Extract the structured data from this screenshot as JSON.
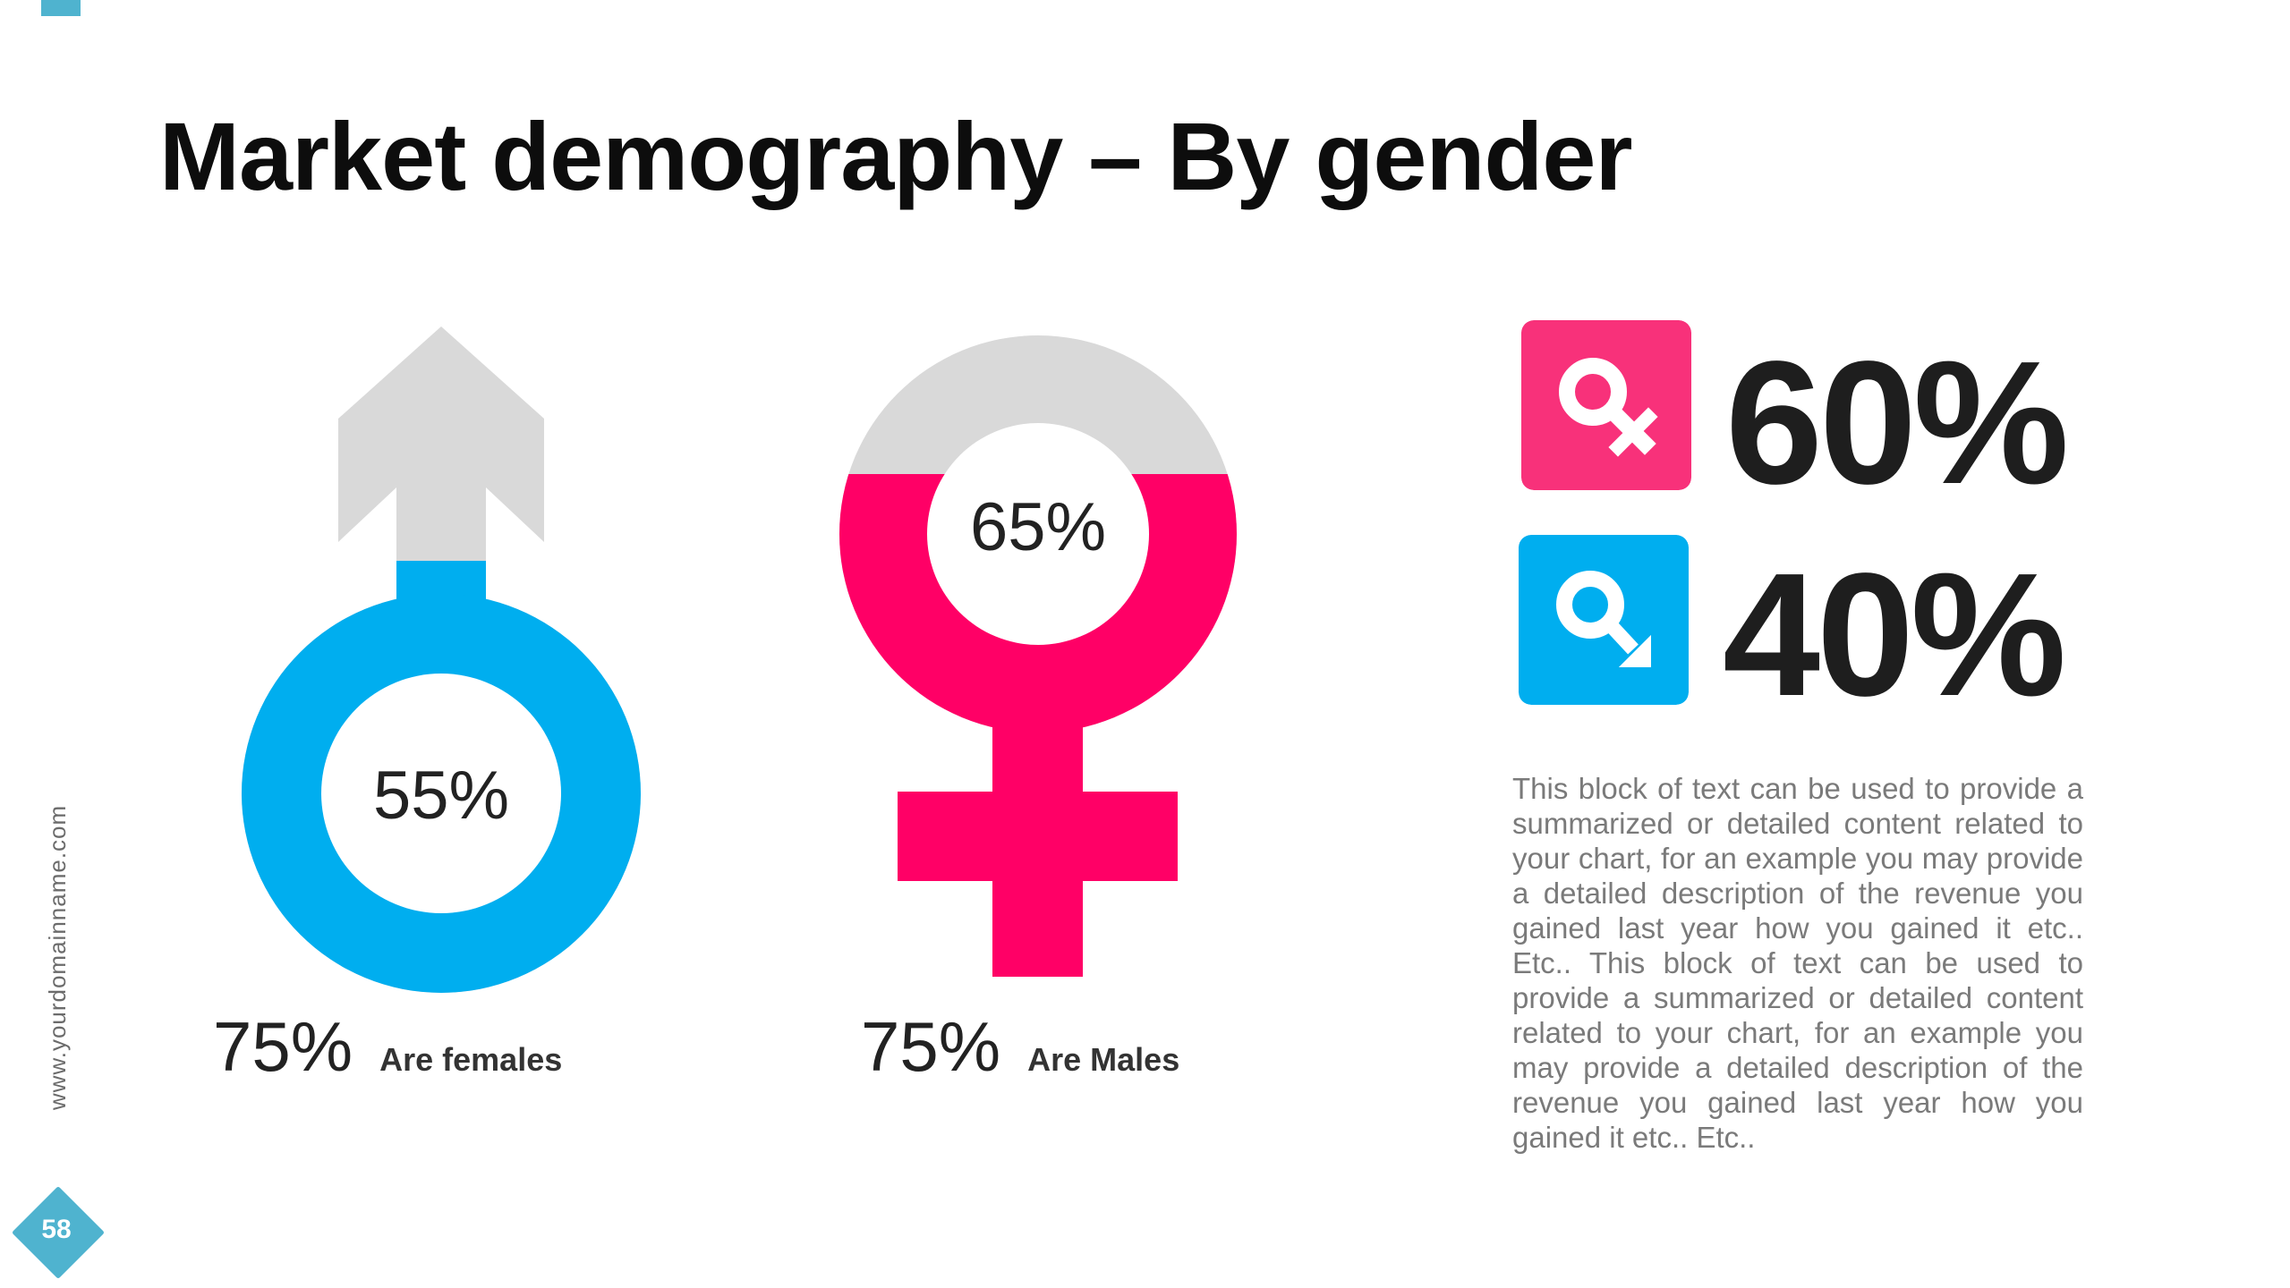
{
  "slide": {
    "title": "Market demography – By gender",
    "side_url": "www.yourdomainname.com",
    "page_number": "58",
    "accent_color": "#4fb3cf"
  },
  "male_figure": {
    "icon": "male-symbol-icon",
    "center_percent": "55%",
    "caption_percent": "75%",
    "caption_label": "Are females",
    "fill_color": "#00aeef",
    "empty_color": "#d9d9d9"
  },
  "female_figure": {
    "icon": "female-symbol-icon",
    "center_percent": "65%",
    "caption_percent": "75%",
    "caption_label": "Are Males",
    "fill_color": "#ff0066",
    "empty_color": "#d9d9d9"
  },
  "stats": {
    "female": {
      "value": "60%",
      "icon": "female-symbol-icon",
      "tile_color": "#f8317a"
    },
    "male": {
      "value": "40%",
      "icon": "male-symbol-icon",
      "tile_color": "#00aeef"
    }
  },
  "description": "This block of text can be used to provide a summarized or detailed content related to your chart, for an example you may provide a detailed description of the revenue you gained last year how you gained it etc.. Etc.. This block of text can be used to provide a summarized or detailed content related to your chart, for an example you may provide a detailed description of the revenue you gained last year how you gained it etc.. Etc.."
}
